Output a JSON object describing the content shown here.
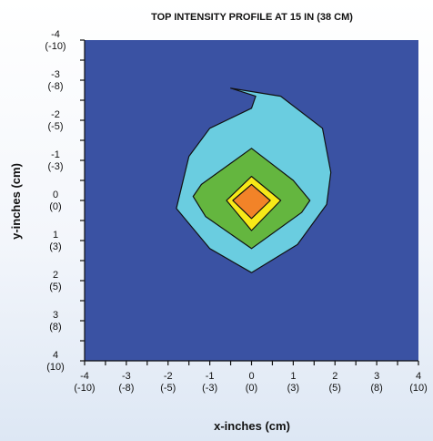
{
  "chart_data": {
    "type": "contour",
    "title": "TOP INTENSITY PROFILE AT 15 IN (38 CM)",
    "xlabel": "x-inches (cm)",
    "ylabel": "y-inches (cm)",
    "xlim": [
      -4,
      4
    ],
    "ylim": [
      -4,
      4
    ],
    "y_axis_direction": "down",
    "x_ticks": [
      {
        "value": -4,
        "inch": "-4",
        "cm": "(-10)"
      },
      {
        "value": -3,
        "inch": "-3",
        "cm": "(-8)"
      },
      {
        "value": -2,
        "inch": "-2",
        "cm": "(-5)"
      },
      {
        "value": -1,
        "inch": "-1",
        "cm": "(-3)"
      },
      {
        "value": 0,
        "inch": "0",
        "cm": "(0)"
      },
      {
        "value": 1,
        "inch": "1",
        "cm": "(3)"
      },
      {
        "value": 2,
        "inch": "2",
        "cm": "(5)"
      },
      {
        "value": 3,
        "inch": "3",
        "cm": "(8)"
      },
      {
        "value": 4,
        "inch": "4",
        "cm": "(10)"
      }
    ],
    "y_ticks": [
      {
        "value": -4,
        "inch": "-4",
        "cm": "(-10)"
      },
      {
        "value": -3,
        "inch": "-3",
        "cm": "(-8)"
      },
      {
        "value": -2,
        "inch": "-2",
        "cm": "(-5)"
      },
      {
        "value": -1,
        "inch": "-1",
        "cm": "(-3)"
      },
      {
        "value": 0,
        "inch": "0",
        "cm": "(0)"
      },
      {
        "value": 1,
        "inch": "1",
        "cm": "(3)"
      },
      {
        "value": 2,
        "inch": "2",
        "cm": "(5)"
      },
      {
        "value": 3,
        "inch": "3",
        "cm": "(8)"
      },
      {
        "value": 4,
        "inch": "4",
        "cm": "(10)"
      }
    ],
    "background_color": "#3a52a3",
    "contours": [
      {
        "level": 1,
        "color": "#6acde0",
        "points": [
          [
            -0.5,
            -2.8
          ],
          [
            0.7,
            -2.6
          ],
          [
            1.7,
            -1.8
          ],
          [
            1.9,
            -0.7
          ],
          [
            1.8,
            0.1
          ],
          [
            1.1,
            1.1
          ],
          [
            0,
            1.8
          ],
          [
            -1.0,
            1.2
          ],
          [
            -1.8,
            0.2
          ],
          [
            -1.5,
            -1.1
          ],
          [
            -1.0,
            -1.8
          ],
          [
            0,
            -2.3
          ],
          [
            0.1,
            -2.6
          ]
        ]
      },
      {
        "level": 2,
        "color": "#64b63f",
        "points": [
          [
            0,
            -1.3
          ],
          [
            1.0,
            -0.5
          ],
          [
            1.4,
            0
          ],
          [
            1.2,
            0.3
          ],
          [
            0,
            1.2
          ],
          [
            -1.1,
            0.4
          ],
          [
            -1.4,
            -0.1
          ],
          [
            -1.2,
            -0.4
          ]
        ]
      },
      {
        "level": 3,
        "color": "#f7e918",
        "points": [
          [
            0,
            -0.6
          ],
          [
            0.7,
            0
          ],
          [
            0,
            0.75
          ],
          [
            -0.6,
            0
          ]
        ]
      },
      {
        "level": 4,
        "color": "#f28328",
        "points": [
          [
            0,
            -0.4
          ],
          [
            0.45,
            0
          ],
          [
            0,
            0.45
          ],
          [
            -0.45,
            0
          ]
        ]
      }
    ],
    "grid": false,
    "legend": "none"
  }
}
